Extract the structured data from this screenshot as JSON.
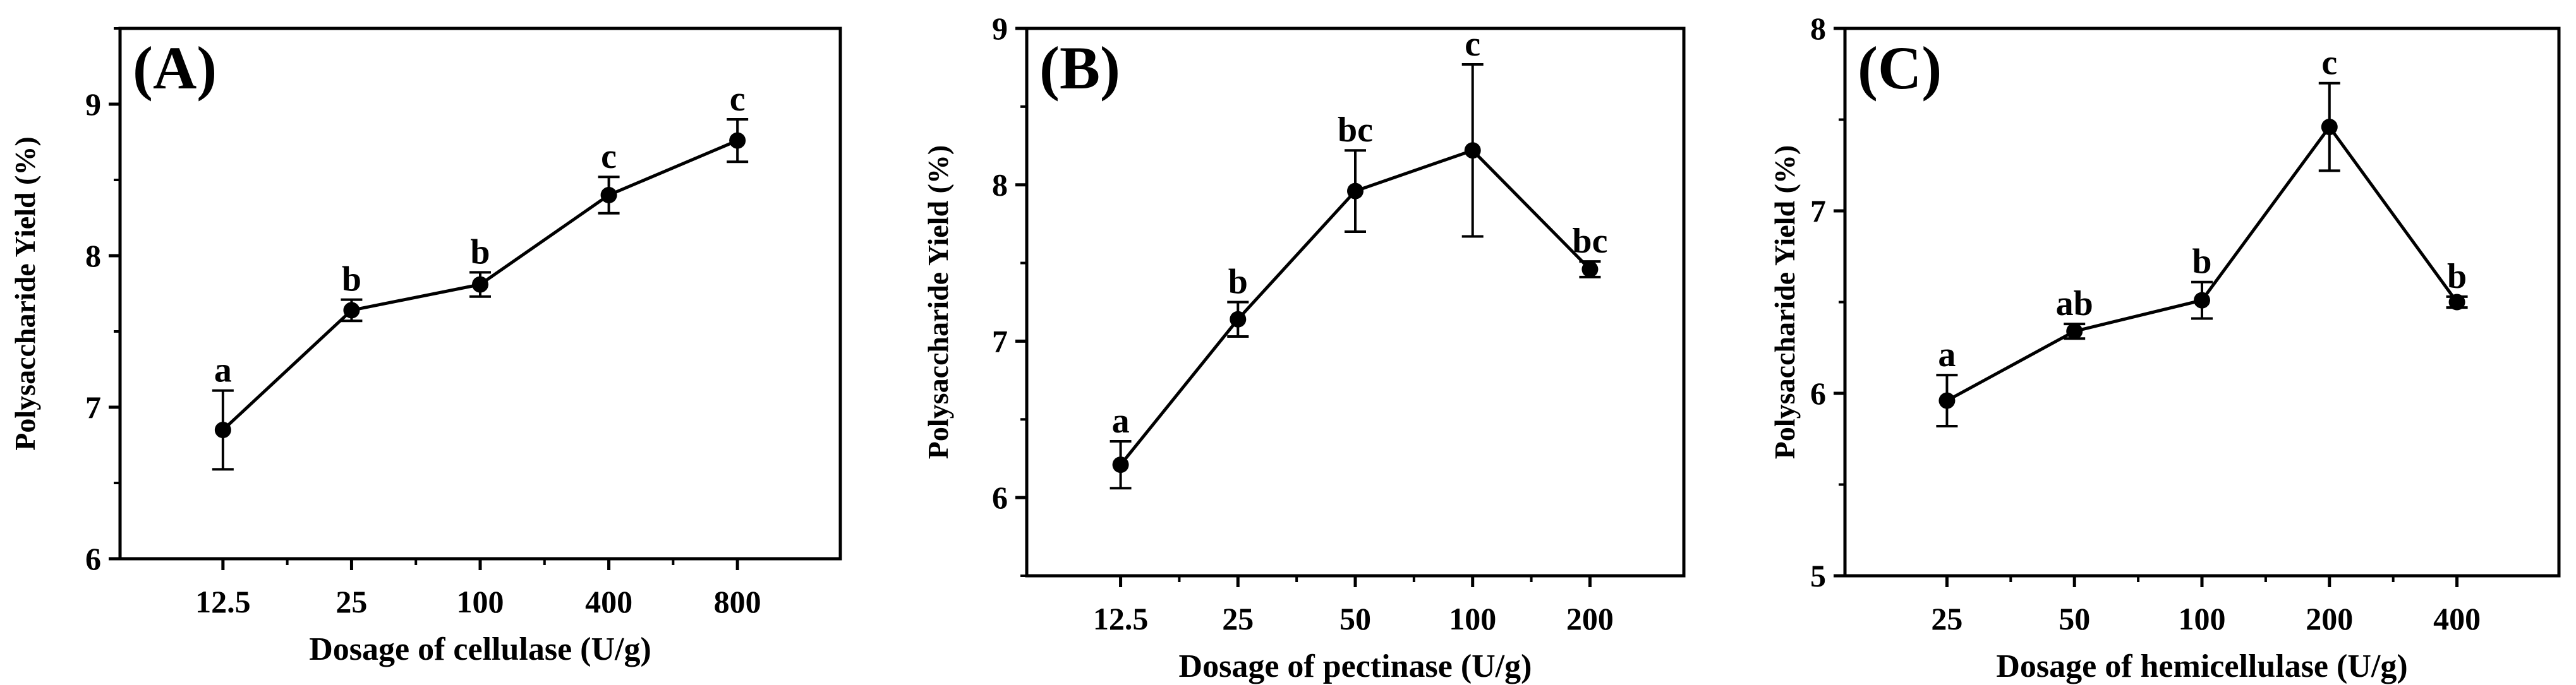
{
  "chart_data": [
    {
      "type": "line",
      "panel_label": "(A)",
      "xlabel": "Dosage of cellulase (U/g)",
      "ylabel": "Polysaccharide Yield (%)",
      "categories": [
        "12.5",
        "25",
        "100",
        "400",
        "800"
      ],
      "values": [
        6.85,
        7.64,
        7.81,
        8.4,
        8.76
      ],
      "errors": [
        0.26,
        0.07,
        0.08,
        0.12,
        0.14
      ],
      "letters": [
        "a",
        "b",
        "b",
        "c",
        "c"
      ],
      "ylim": [
        6,
        9.5
      ],
      "yticks": [
        6,
        7,
        8,
        9
      ],
      "grid": false
    },
    {
      "type": "line",
      "panel_label": "(B)",
      "xlabel": "Dosage of pectinase (U/g)",
      "ylabel": "Polysaccharide Yield (%)",
      "categories": [
        "12.5",
        "25",
        "50",
        "100",
        "200"
      ],
      "values": [
        6.21,
        7.14,
        7.96,
        8.22,
        7.46
      ],
      "errors": [
        0.15,
        0.11,
        0.26,
        0.55,
        0.05
      ],
      "letters": [
        "a",
        "b",
        "bc",
        "c",
        "bc"
      ],
      "ylim": [
        5.5,
        9
      ],
      "yticks": [
        6,
        7,
        8,
        9
      ],
      "grid": false
    },
    {
      "type": "line",
      "panel_label": "(C)",
      "xlabel": "Dosage of hemicellulase (U/g)",
      "ylabel": "Polysaccharide Yield (%)",
      "categories": [
        "25",
        "50",
        "100",
        "200",
        "400"
      ],
      "values": [
        5.96,
        6.34,
        6.51,
        7.46,
        6.5
      ],
      "errors": [
        0.14,
        0.04,
        0.1,
        0.24,
        0.03
      ],
      "letters": [
        "a",
        "ab",
        "b",
        "c",
        "b"
      ],
      "ylim": [
        5,
        8
      ],
      "yticks": [
        5,
        6,
        7,
        8
      ],
      "grid": false
    }
  ]
}
